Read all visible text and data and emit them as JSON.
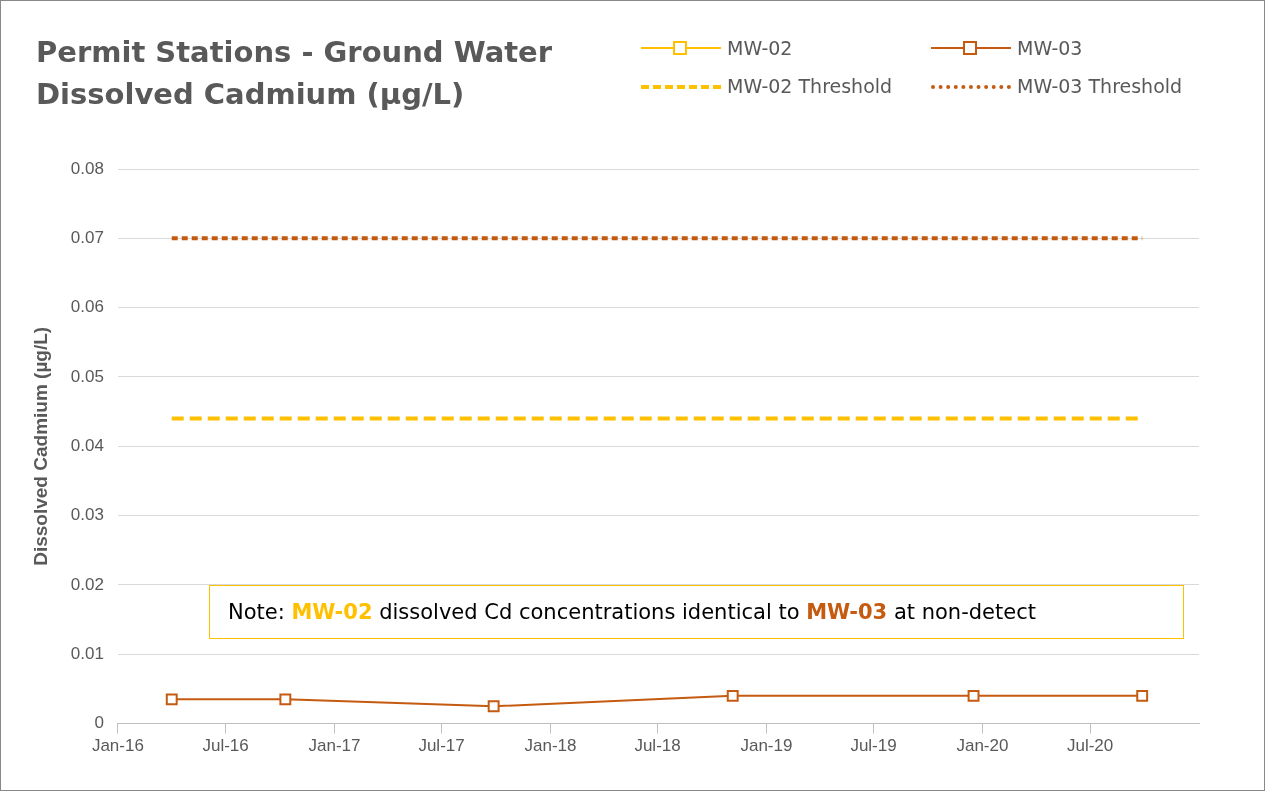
{
  "chart_data": {
    "type": "line",
    "title": "Permit Stations - Ground Water Dissolved Cadmium (µg/L)",
    "ylabel": "Dissolved Cadmium (µg/L)",
    "x": [
      "2016-04-01",
      "2016-10-10",
      "2017-09-27",
      "2018-11-05",
      "2019-12-17",
      "2020-09-27"
    ],
    "series": [
      {
        "name": "MW-02",
        "color": "#ffc000",
        "marker": "square",
        "values": [
          null,
          null,
          null,
          null,
          null,
          null
        ]
      },
      {
        "name": "MW-03",
        "color": "#c55a11",
        "marker": "square",
        "values": [
          0.0035,
          0.0035,
          0.0025,
          0.004,
          0.004,
          0.004
        ]
      },
      {
        "name": "MW-02 Threshold",
        "color": "#ffc000",
        "marker": "none",
        "line_style": "dashed",
        "x": [
          "2016-04-01",
          "2020-09-27"
        ],
        "values": [
          0.044,
          0.044
        ]
      },
      {
        "name": "MW-03 Threshold",
        "color": "#c55a11",
        "marker": "none",
        "line_style": "dotted",
        "x": [
          "2016-04-01",
          "2020-09-27"
        ],
        "values": [
          0.07,
          0.07
        ]
      }
    ],
    "xlim": [
      "2016-01-01",
      "2021-01-01"
    ],
    "xticks": [
      {
        "value": "2016-01-01",
        "label": "Jan-16"
      },
      {
        "value": "2016-07-01",
        "label": "Jul-16"
      },
      {
        "value": "2017-01-01",
        "label": "Jan-17"
      },
      {
        "value": "2017-07-01",
        "label": "Jul-17"
      },
      {
        "value": "2018-01-01",
        "label": "Jan-18"
      },
      {
        "value": "2018-07-01",
        "label": "Jul-18"
      },
      {
        "value": "2019-01-01",
        "label": "Jan-19"
      },
      {
        "value": "2019-07-01",
        "label": "Jul-19"
      },
      {
        "value": "2020-01-01",
        "label": "Jan-20"
      },
      {
        "value": "2020-07-01",
        "label": "Jul-20"
      }
    ],
    "ylim": [
      0,
      0.08
    ],
    "yticks": [
      0,
      0.01,
      0.02,
      0.03,
      0.04,
      0.05,
      0.06,
      0.07,
      0.08
    ],
    "grid": "y",
    "legend": "top right",
    "annotations": [
      "Note: MW-02 dissolved Cd concentrations identical to MW-03 at non-detect"
    ]
  }
}
